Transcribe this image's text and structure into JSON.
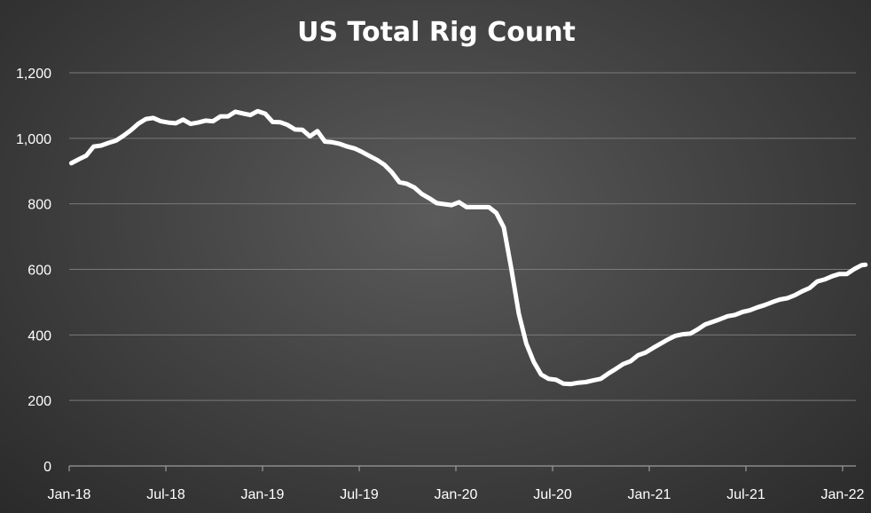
{
  "chart_data": {
    "type": "line",
    "title": "US Total Rig Count",
    "xlabel": "",
    "ylabel": "",
    "ylim": [
      0,
      1200
    ],
    "yticks": [
      "0",
      "200",
      "400",
      "600",
      "800",
      "1,000",
      "1,200"
    ],
    "ytick_values": [
      0,
      200,
      400,
      600,
      800,
      1000,
      1200
    ],
    "xticks": [
      "Jan-18",
      "Jul-18",
      "Jan-19",
      "Jul-19",
      "Jan-20",
      "Jul-20",
      "Jan-21",
      "Jul-21",
      "Jan-22"
    ],
    "xlim": [
      "2018-01-01",
      "2022-02-04"
    ],
    "grid": true,
    "legend": "none",
    "line_color": "#ffffff",
    "series": [
      {
        "x": [
          "2018-01-05",
          "2018-01-19",
          "2018-02-02",
          "2018-02-16",
          "2018-03-02",
          "2018-03-16",
          "2018-03-30",
          "2018-04-13",
          "2018-04-27",
          "2018-05-11",
          "2018-05-25",
          "2018-06-08",
          "2018-06-22",
          "2018-07-06",
          "2018-07-20",
          "2018-08-03",
          "2018-08-17",
          "2018-08-31",
          "2018-09-14",
          "2018-09-28",
          "2018-10-12",
          "2018-10-26",
          "2018-11-09",
          "2018-11-23",
          "2018-12-07",
          "2018-12-21",
          "2019-01-04",
          "2019-01-18",
          "2019-02-01",
          "2019-02-15",
          "2019-03-01",
          "2019-03-15",
          "2019-03-29",
          "2019-04-12",
          "2019-04-26",
          "2019-05-10",
          "2019-05-24",
          "2019-06-07",
          "2019-06-21",
          "2019-07-05",
          "2019-07-19",
          "2019-08-02",
          "2019-08-16",
          "2019-08-30",
          "2019-09-13",
          "2019-09-27",
          "2019-10-11",
          "2019-10-25",
          "2019-11-08",
          "2019-11-22",
          "2019-12-06",
          "2019-12-20",
          "2020-01-03",
          "2020-01-17",
          "2020-01-31",
          "2020-02-14",
          "2020-02-28",
          "2020-03-13",
          "2020-03-27",
          "2020-04-10",
          "2020-04-24",
          "2020-05-08",
          "2020-05-22",
          "2020-06-05",
          "2020-06-19",
          "2020-07-03",
          "2020-07-17",
          "2020-07-31",
          "2020-08-14",
          "2020-08-28",
          "2020-09-11",
          "2020-09-25",
          "2020-10-09",
          "2020-10-23",
          "2020-11-06",
          "2020-11-20",
          "2020-12-04",
          "2020-12-18",
          "2021-01-01",
          "2021-01-15",
          "2021-01-29",
          "2021-02-12",
          "2021-02-26",
          "2021-03-12",
          "2021-03-26",
          "2021-04-09",
          "2021-04-23",
          "2021-05-07",
          "2021-05-21",
          "2021-06-04",
          "2021-06-18",
          "2021-07-02",
          "2021-07-16",
          "2021-07-30",
          "2021-08-13",
          "2021-08-27",
          "2021-09-10",
          "2021-09-24",
          "2021-10-08",
          "2021-10-22",
          "2021-11-05",
          "2021-11-19",
          "2021-12-03",
          "2021-12-17",
          "2021-12-31",
          "2022-01-14",
          "2022-01-28",
          "2022-02-04"
        ],
        "y": [
          924,
          936,
          947,
          975,
          978,
          986,
          993,
          1008,
          1025,
          1045,
          1059,
          1062,
          1052,
          1048,
          1046,
          1057,
          1044,
          1048,
          1054,
          1052,
          1067,
          1067,
          1081,
          1076,
          1071,
          1083,
          1075,
          1050,
          1049,
          1041,
          1027,
          1026,
          1006,
          1022,
          990,
          988,
          983,
          975,
          969,
          958,
          946,
          934,
          919,
          896,
          866,
          861,
          850,
          830,
          817,
          802,
          799,
          796,
          805,
          790,
          790,
          790,
          790,
          772,
          728,
          602,
          465,
          374,
          318,
          279,
          266,
          263,
          251,
          250,
          254,
          256,
          261,
          266,
          282,
          296,
          311,
          320,
          338,
          346,
          360,
          373,
          386,
          397,
          402,
          404,
          417,
          432,
          440,
          448,
          457,
          461,
          470,
          475,
          484,
          491,
          500,
          508,
          512,
          521,
          533,
          543,
          563,
          569,
          579,
          586,
          586,
          601,
          613,
          614
        ]
      }
    ]
  }
}
